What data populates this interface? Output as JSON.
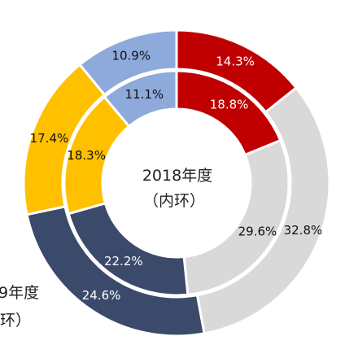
{
  "chart_data": [
    {
      "type": "pie",
      "ring": "inner",
      "center_title": "2018年度",
      "center_subtitle": "（内环）",
      "slices": [
        {
          "value": 18.8,
          "label": "18.8%",
          "color": "#c00000",
          "label_color": "#ffffff"
        },
        {
          "value": 29.6,
          "label": "29.6%",
          "color": "#d9d9d9",
          "label_color": "#111111"
        },
        {
          "value": 22.2,
          "label": "22.2%",
          "color": "#3b4a6b",
          "label_color": "#ffffff"
        },
        {
          "value": 18.3,
          "label": "18.3%",
          "color": "#ffc000",
          "label_color": "#111111"
        },
        {
          "value": 11.1,
          "label": "11.1%",
          "color": "#8eaadb",
          "label_color": "#111111"
        }
      ]
    },
    {
      "type": "pie",
      "ring": "outer",
      "side_title": "9年度",
      "side_subtitle": "环）",
      "slices": [
        {
          "value": 14.3,
          "label": "14.3%",
          "color": "#c00000",
          "label_color": "#ffffff"
        },
        {
          "value": 32.8,
          "label": "32.8%",
          "color": "#d9d9d9",
          "label_color": "#111111"
        },
        {
          "value": 24.6,
          "label": "24.6%",
          "color": "#3b4a6b",
          "label_color": "#ffffff"
        },
        {
          "value": 17.4,
          "label": "17.4%",
          "color": "#ffc000",
          "label_color": "#111111"
        },
        {
          "value": 10.9,
          "label": "10.9%",
          "color": "#8eaadb",
          "label_color": "#111111"
        }
      ]
    }
  ]
}
